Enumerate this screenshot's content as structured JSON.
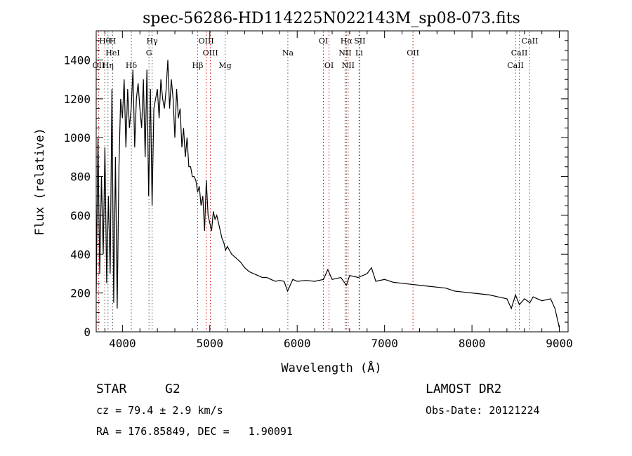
{
  "chart_data": {
    "type": "line",
    "title": "spec-56286-HD114225N022143M_sp08-073.fits",
    "xlabel": "Wavelength (Å)",
    "ylabel": "Flux (relative)",
    "xlim": [
      3700,
      9100
    ],
    "ylim": [
      0,
      1550
    ],
    "x_ticks": [
      4000,
      5000,
      6000,
      7000,
      8000,
      9000
    ],
    "y_ticks": [
      0,
      200,
      400,
      600,
      800,
      1000,
      1200,
      1400
    ],
    "grid": false,
    "line_color": "#000000",
    "marker_color": "#cc0000",
    "series": [
      {
        "x": [
          3700,
          3720,
          3740,
          3760,
          3780,
          3800,
          3820,
          3840,
          3860,
          3880,
          3900,
          3920,
          3940,
          3960,
          3980,
          4000,
          4020,
          4040,
          4060,
          4080,
          4100,
          4120,
          4140,
          4160,
          4180,
          4200,
          4220,
          4240,
          4260,
          4280,
          4300,
          4320,
          4340,
          4360,
          4380,
          4400,
          4420,
          4440,
          4460,
          4480,
          4500,
          4520,
          4540,
          4560,
          4580,
          4600,
          4620,
          4640,
          4660,
          4680,
          4700,
          4720,
          4740,
          4760,
          4780,
          4800,
          4820,
          4840,
          4860,
          4880,
          4900,
          4920,
          4940,
          4960,
          4980,
          5000,
          5020,
          5040,
          5060,
          5080,
          5100,
          5120,
          5140,
          5160,
          5180,
          5200,
          5250,
          5300,
          5350,
          5400,
          5450,
          5500,
          5550,
          5600,
          5650,
          5700,
          5750,
          5800,
          5850,
          5890,
          5950,
          6000,
          6100,
          6200,
          6300,
          6350,
          6400,
          6500,
          6563,
          6600,
          6700,
          6800,
          6850,
          6900,
          7000,
          7100,
          7200,
          7300,
          7400,
          7500,
          7600,
          7700,
          7800,
          7900,
          8000,
          8100,
          8200,
          8300,
          8400,
          8450,
          8498,
          8542,
          8600,
          8662,
          8700,
          8800,
          8900,
          8950,
          9000
        ],
        "y": [
          200,
          1000,
          300,
          800,
          400,
          950,
          250,
          700,
          300,
          1250,
          150,
          900,
          120,
          850,
          1200,
          1100,
          1300,
          950,
          1250,
          1050,
          1150,
          1350,
          950,
          1200,
          1280,
          1150,
          1050,
          1300,
          900,
          1350,
          700,
          1250,
          650,
          1150,
          1200,
          1250,
          1100,
          1300,
          1200,
          1150,
          1250,
          1400,
          1150,
          1300,
          1200,
          1000,
          1250,
          1100,
          1150,
          950,
          1050,
          900,
          1000,
          850,
          850,
          800,
          800,
          780,
          720,
          750,
          650,
          700,
          520,
          780,
          600,
          560,
          520,
          620,
          580,
          600,
          560,
          520,
          480,
          460,
          420,
          440,
          400,
          380,
          360,
          330,
          310,
          300,
          290,
          280,
          280,
          270,
          260,
          265,
          260,
          210,
          270,
          260,
          265,
          260,
          270,
          320,
          270,
          280,
          240,
          290,
          280,
          300,
          330,
          260,
          270,
          255,
          250,
          245,
          240,
          235,
          230,
          225,
          210,
          205,
          200,
          195,
          190,
          180,
          170,
          120,
          190,
          140,
          170,
          150,
          180,
          160,
          170,
          120,
          20
        ]
      }
    ],
    "line_markers": [
      {
        "label": "Hθ",
        "x": 3798,
        "row": 1,
        "color": "#555555"
      },
      {
        "label": "H",
        "x": 3889,
        "row": 1,
        "color": "#555555"
      },
      {
        "label": "Hγ",
        "x": 4340,
        "row": 1,
        "color": "#555555"
      },
      {
        "label": "OIII",
        "x": 4959,
        "row": 1,
        "color": "#cc0000"
      },
      {
        "label": "OI",
        "x": 6300,
        "row": 1,
        "color": "#cc0000"
      },
      {
        "label": "Hα",
        "x": 6563,
        "row": 1,
        "color": "#555555"
      },
      {
        "label": "SII",
        "x": 6716,
        "row": 1,
        "color": "#cc0000"
      },
      {
        "label": "CaII",
        "x": 8662,
        "row": 1,
        "color": "#555555"
      },
      {
        "label": "HeI",
        "x": 3889,
        "row": 2,
        "color": "#555555"
      },
      {
        "label": "G",
        "x": 4304,
        "row": 2,
        "color": "#555555"
      },
      {
        "label": "OIII",
        "x": 5007,
        "row": 2,
        "color": "#cc0000"
      },
      {
        "label": "Na",
        "x": 5893,
        "row": 2,
        "color": "#555555"
      },
      {
        "label": "NII",
        "x": 6548,
        "row": 2,
        "color": "#cc0000"
      },
      {
        "label": "Li",
        "x": 6708,
        "row": 2,
        "color": "#555555"
      },
      {
        "label": "OII",
        "x": 7325,
        "row": 2,
        "color": "#cc0000"
      },
      {
        "label": "CaII",
        "x": 8542,
        "row": 2,
        "color": "#555555"
      },
      {
        "label": "OII",
        "x": 3727,
        "row": 3,
        "color": "#cc0000"
      },
      {
        "label": "Hη",
        "x": 3835,
        "row": 3,
        "color": "#555555"
      },
      {
        "label": "Hδ",
        "x": 4102,
        "row": 3,
        "color": "#555555"
      },
      {
        "label": "Hβ",
        "x": 4861,
        "row": 3,
        "color": "#555555"
      },
      {
        "label": "Mg",
        "x": 5175,
        "row": 3,
        "color": "#555555"
      },
      {
        "label": "OI",
        "x": 6364,
        "row": 3,
        "color": "#cc0000"
      },
      {
        "label": "NII",
        "x": 6583,
        "row": 3,
        "color": "#cc0000"
      },
      {
        "label": "CaII",
        "x": 8498,
        "row": 3,
        "color": "#555555"
      }
    ]
  },
  "info": {
    "object_class": "STAR",
    "subclass": "G2",
    "survey": "LAMOST DR2",
    "redshift_line": "cz = 79.4 ± 2.9 km/s",
    "obs_date": "Obs-Date: 20121224",
    "coordinates": "RA = 176.85849, DEC =   1.90091"
  }
}
